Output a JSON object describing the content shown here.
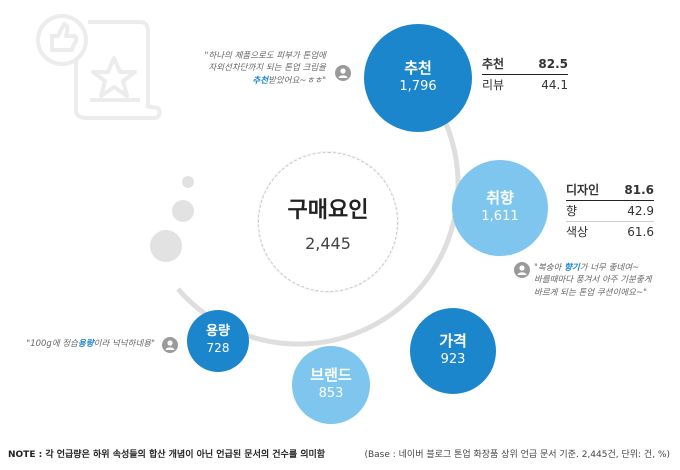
{
  "center": {
    "title": "구매요인",
    "value": "2,445"
  },
  "factors": [
    {
      "name": "추천",
      "value": "1,796",
      "color": "#1c86cc"
    },
    {
      "name": "취향",
      "value": "1,611",
      "color": "#7ec6ee"
    },
    {
      "name": "가격",
      "value": "923",
      "color": "#1c86cc"
    },
    {
      "name": "브랜드",
      "value": "853",
      "color": "#7ec6ee"
    },
    {
      "name": "용량",
      "value": "728",
      "color": "#1c86cc"
    }
  ],
  "tables": {
    "recommend": [
      {
        "label": "추천",
        "value": "82.5"
      },
      {
        "label": "리뷰",
        "value": "44.1"
      }
    ],
    "taste": [
      {
        "label": "디자인",
        "value": "81.6"
      },
      {
        "label": "향",
        "value": "42.9"
      },
      {
        "label": "색상",
        "value": "61.6"
      }
    ]
  },
  "quotes": {
    "q1": {
      "line1": "\"하나의 제품으로도 피부가 톤업에",
      "line2": "자외선차단까지 되는 톤업 크림을",
      "hl": "추천",
      "tail": "받았어요~ㅎㅎ\""
    },
    "q2": {
      "pre": "\"복숭아 ",
      "hl": "향기",
      "post": "가 너무 좋네여~",
      "line2": "바를때마다 풍겨서 아주 기분좋게",
      "line3": "바르게 되는 톤업 쿠션이에요~\""
    },
    "q3": {
      "pre": "\"100g에 정습",
      "hl": "용량",
      "post": "이라 넉넉하네용\""
    }
  },
  "footer": {
    "note": "NOTE : 각 언급량은 하위 속성들의 합산 개념이 아닌 언급된 문서의 건수를 의미함",
    "base": "(Base : 네이버 블로그 톤업 화장품 상위 언급 문서 기준. 2,445건, 단위: 건, %)"
  },
  "colors": {
    "dark_blue": "#1c86cc",
    "light_blue": "#7ec6ee",
    "ring": "#dedede"
  }
}
